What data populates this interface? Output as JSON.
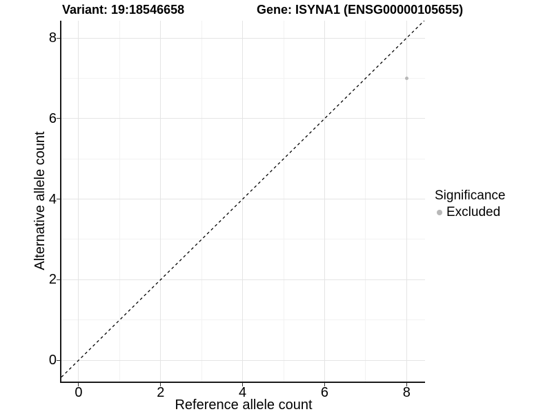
{
  "titles": {
    "variant": "Variant: 19:18546658",
    "gene": "Gene: ISYNA1 (ENSG00000105655)"
  },
  "chart_data": {
    "type": "scatter",
    "xlabel": "Reference allele count",
    "ylabel": "Alternative allele count",
    "xlim": [
      -0.42,
      8.45
    ],
    "ylim": [
      -0.53,
      8.43
    ],
    "xticks": [
      0,
      2,
      4,
      6,
      8
    ],
    "yticks": [
      0,
      2,
      4,
      6,
      8
    ],
    "minor_xticks": [
      1,
      3,
      5,
      7
    ],
    "minor_yticks": [
      1,
      3,
      5,
      7
    ],
    "grid": "major+minor",
    "series": [
      {
        "name": "Excluded",
        "color": "#b8b8b8",
        "points": [
          {
            "x": 8,
            "y": 7
          }
        ]
      }
    ],
    "reference_line": {
      "type": "identity",
      "slope": 1,
      "intercept": 0,
      "style": "dashed",
      "color": "#000000"
    },
    "legend": {
      "title": "Significance",
      "position": "right",
      "items": [
        {
          "label": "Excluded",
          "color": "#b8b8b8"
        }
      ]
    }
  },
  "colors": {
    "background": "#ffffff",
    "axis_line": "#1a1a1a",
    "major_grid": "#e4e4e4",
    "minor_grid": "#f2f2f2",
    "tick_mark": "#333333",
    "point": "#b8b8b8",
    "text": "#000000"
  }
}
